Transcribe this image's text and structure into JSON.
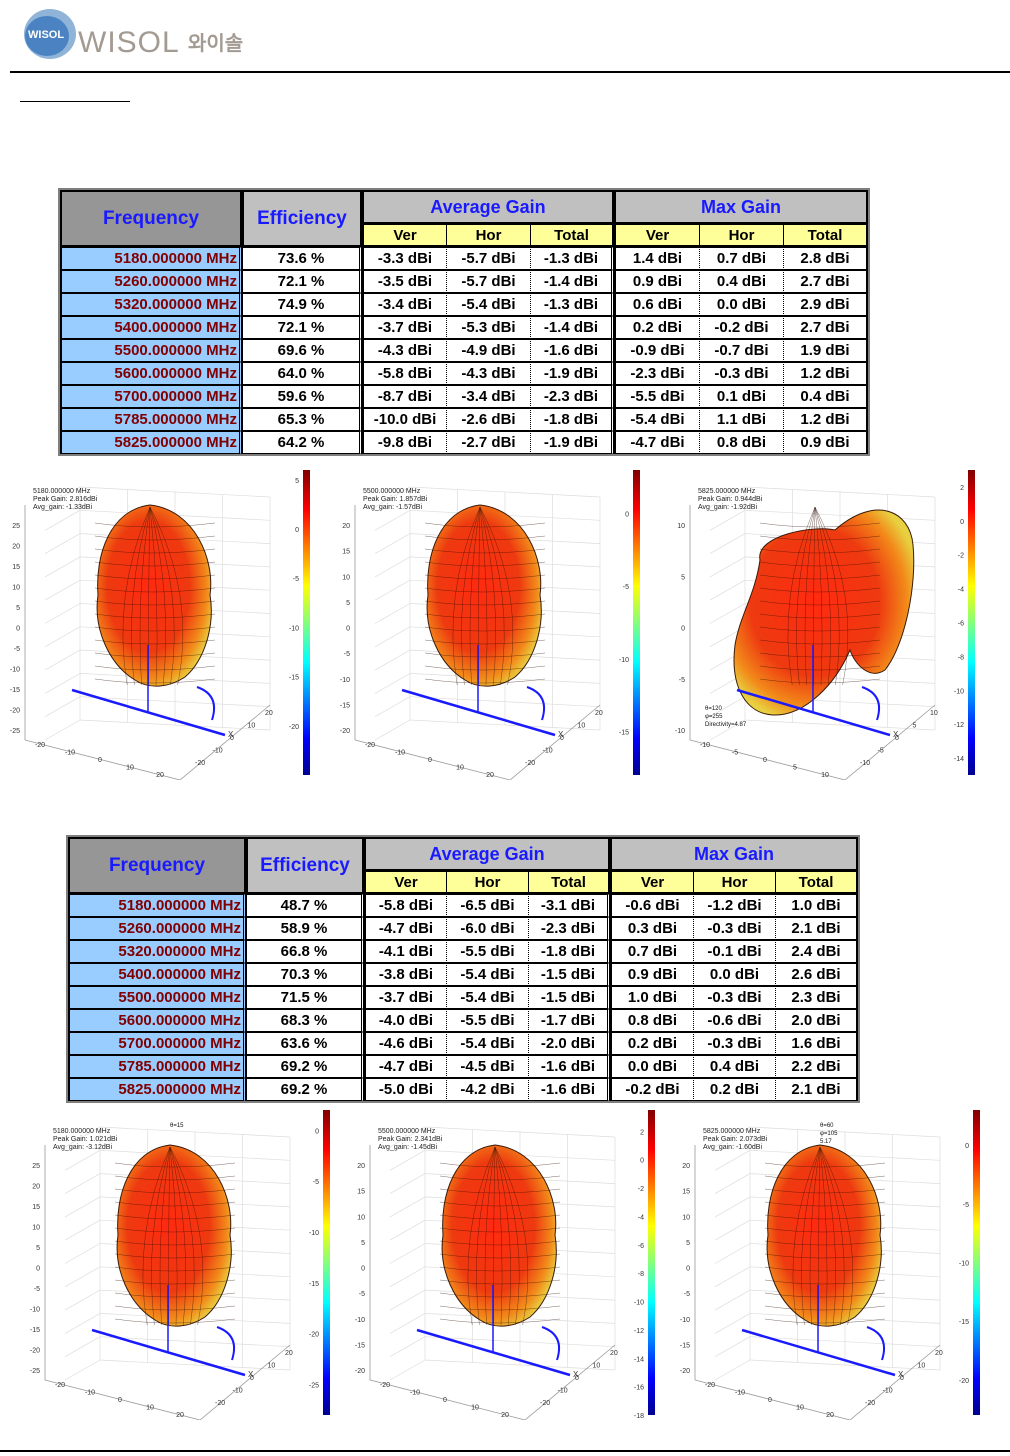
{
  "header": {
    "logo_badge_text": "WISOL",
    "logo_text": "WISOL",
    "logo_korean": "와이솔"
  },
  "colors": {
    "header_text": "#1a1aff",
    "freq_text": "#800000",
    "freq_bg": "#99ccff",
    "subheader_bg": "#ffff99",
    "header_bg_dark": "#969696",
    "header_bg_light": "#c0c0c0"
  },
  "tables": [
    {
      "headers": {
        "frequency": "Frequency",
        "efficiency": "Efficiency",
        "average_gain": "Average Gain",
        "max_gain": "Max Gain",
        "sub": [
          "Ver",
          "Hor",
          "Total",
          "Ver",
          "Hor",
          "Total"
        ]
      },
      "rows": [
        {
          "freq": "5180.000000 MHz",
          "eff": "73.6 %",
          "avg_ver": "-3.3 dBi",
          "avg_hor": "-5.7 dBi",
          "avg_total": "-1.3 dBi",
          "max_ver": "1.4 dBi",
          "max_hor": "0.7 dBi",
          "max_total": "2.8 dBi"
        },
        {
          "freq": "5260.000000 MHz",
          "eff": "72.1 %",
          "avg_ver": "-3.5 dBi",
          "avg_hor": "-5.7 dBi",
          "avg_total": "-1.4 dBi",
          "max_ver": "0.9 dBi",
          "max_hor": "0.4 dBi",
          "max_total": "2.7 dBi"
        },
        {
          "freq": "5320.000000 MHz",
          "eff": "74.9 %",
          "avg_ver": "-3.4 dBi",
          "avg_hor": "-5.4 dBi",
          "avg_total": "-1.3 dBi",
          "max_ver": "0.6 dBi",
          "max_hor": "0.0 dBi",
          "max_total": "2.9 dBi"
        },
        {
          "freq": "5400.000000 MHz",
          "eff": "72.1 %",
          "avg_ver": "-3.7 dBi",
          "avg_hor": "-5.3 dBi",
          "avg_total": "-1.4 dBi",
          "max_ver": "0.2 dBi",
          "max_hor": "-0.2 dBi",
          "max_total": "2.7 dBi"
        },
        {
          "freq": "5500.000000 MHz",
          "eff": "69.6 %",
          "avg_ver": "-4.3 dBi",
          "avg_hor": "-4.9 dBi",
          "avg_total": "-1.6 dBi",
          "max_ver": "-0.9 dBi",
          "max_hor": "-0.7 dBi",
          "max_total": "1.9 dBi"
        },
        {
          "freq": "5600.000000 MHz",
          "eff": "64.0 %",
          "avg_ver": "-5.8 dBi",
          "avg_hor": "-4.3 dBi",
          "avg_total": "-1.9 dBi",
          "max_ver": "-2.3 dBi",
          "max_hor": "-0.3 dBi",
          "max_total": "1.2 dBi"
        },
        {
          "freq": "5700.000000 MHz",
          "eff": "59.6 %",
          "avg_ver": "-8.7 dBi",
          "avg_hor": "-3.4 dBi",
          "avg_total": "-2.3 dBi",
          "max_ver": "-5.5 dBi",
          "max_hor": "0.1 dBi",
          "max_total": "0.4 dBi"
        },
        {
          "freq": "5785.000000 MHz",
          "eff": "65.3 %",
          "avg_ver": "-10.0 dBi",
          "avg_hor": "-2.6 dBi",
          "avg_total": "-1.8 dBi",
          "max_ver": "-5.4 dBi",
          "max_hor": "1.1 dBi",
          "max_total": "1.2 dBi"
        },
        {
          "freq": "5825.000000 MHz",
          "eff": "64.2 %",
          "avg_ver": "-9.8 dBi",
          "avg_hor": "-2.7 dBi",
          "avg_total": "-1.9 dBi",
          "max_ver": "-4.7 dBi",
          "max_hor": "0.8 dBi",
          "max_total": "0.9 dBi"
        }
      ]
    },
    {
      "headers": {
        "frequency": "Frequency",
        "efficiency": "Efficiency",
        "average_gain": "Average Gain",
        "max_gain": "Max Gain",
        "sub": [
          "Ver",
          "Hor",
          "Total",
          "Ver",
          "Hor",
          "Total"
        ]
      },
      "rows": [
        {
          "freq": "5180.000000 MHz",
          "eff": "48.7 %",
          "avg_ver": "-5.8 dBi",
          "avg_hor": "-6.5 dBi",
          "avg_total": "-3.1 dBi",
          "max_ver": "-0.6 dBi",
          "max_hor": "-1.2 dBi",
          "max_total": "1.0 dBi"
        },
        {
          "freq": "5260.000000 MHz",
          "eff": "58.9 %",
          "avg_ver": "-4.7 dBi",
          "avg_hor": "-6.0 dBi",
          "avg_total": "-2.3 dBi",
          "max_ver": "0.3 dBi",
          "max_hor": "-0.3 dBi",
          "max_total": "2.1 dBi"
        },
        {
          "freq": "5320.000000 MHz",
          "eff": "66.8 %",
          "avg_ver": "-4.1 dBi",
          "avg_hor": "-5.5 dBi",
          "avg_total": "-1.8 dBi",
          "max_ver": "0.7 dBi",
          "max_hor": "-0.1 dBi",
          "max_total": "2.4 dBi"
        },
        {
          "freq": "5400.000000 MHz",
          "eff": "70.3 %",
          "avg_ver": "-3.8 dBi",
          "avg_hor": "-5.4 dBi",
          "avg_total": "-1.5 dBi",
          "max_ver": "0.9 dBi",
          "max_hor": "0.0 dBi",
          "max_total": "2.6 dBi"
        },
        {
          "freq": "5500.000000 MHz",
          "eff": "71.5 %",
          "avg_ver": "-3.7 dBi",
          "avg_hor": "-5.4 dBi",
          "avg_total": "-1.5 dBi",
          "max_ver": "1.0 dBi",
          "max_hor": "-0.3 dBi",
          "max_total": "2.3 dBi"
        },
        {
          "freq": "5600.000000 MHz",
          "eff": "68.3 %",
          "avg_ver": "-4.0 dBi",
          "avg_hor": "-5.5 dBi",
          "avg_total": "-1.7 dBi",
          "max_ver": "0.8 dBi",
          "max_hor": "-0.6 dBi",
          "max_total": "2.0 dBi"
        },
        {
          "freq": "5700.000000 MHz",
          "eff": "63.6 %",
          "avg_ver": "-4.6 dBi",
          "avg_hor": "-5.4 dBi",
          "avg_total": "-2.0 dBi",
          "max_ver": "0.2 dBi",
          "max_hor": "-0.3 dBi",
          "max_total": "1.6 dBi"
        },
        {
          "freq": "5785.000000 MHz",
          "eff": "69.2 %",
          "avg_ver": "-4.7 dBi",
          "avg_hor": "-4.5 dBi",
          "avg_total": "-1.6 dBi",
          "max_ver": "0.0 dBi",
          "max_hor": "0.4 dBi",
          "max_total": "2.2 dBi"
        },
        {
          "freq": "5825.000000 MHz",
          "eff": "69.2 %",
          "avg_ver": "-5.0 dBi",
          "avg_hor": "-4.2 dBi",
          "avg_total": "-1.6 dBi",
          "max_ver": "-0.2 dBi",
          "max_hor": "0.2 dBi",
          "max_total": "2.1 dBi"
        }
      ]
    }
  ],
  "plots": [
    {
      "label": [
        "5180.000000 MHz",
        "Peak Gain: 2.816dBi",
        "Avg_gain: -1.33dBi"
      ],
      "z_ticks": [
        "25",
        "20",
        "15",
        "10",
        "5",
        "0",
        "-5",
        "-10",
        "-15",
        "-20",
        "-25"
      ],
      "x_ticks": [
        "-20",
        "-10",
        "0",
        "10",
        "20"
      ],
      "y_ticks": [
        "20",
        "10",
        "0",
        "-10",
        "-20"
      ],
      "axis_label": "X",
      "colorbar_ticks": [
        "5",
        "0",
        "-5",
        "-10",
        "-15",
        "-20"
      ],
      "colorbar_range": [
        -25,
        6
      ],
      "shape": "egg"
    },
    {
      "label": [
        "5500.000000 MHz",
        "Peak Gain: 1.857dBi",
        "Avg_gain: -1.57dBi"
      ],
      "z_ticks": [
        "20",
        "15",
        "10",
        "5",
        "0",
        "-5",
        "-10",
        "-15",
        "-20"
      ],
      "x_ticks": [
        "-20",
        "-10",
        "0",
        "10",
        "20"
      ],
      "y_ticks": [
        "20",
        "10",
        "0",
        "-10",
        "-20"
      ],
      "axis_label": "X",
      "colorbar_ticks": [
        "0",
        "-5",
        "-10",
        "-15"
      ],
      "colorbar_range": [
        -18,
        3
      ],
      "shape": "egg"
    },
    {
      "label": [
        "5825.000000 MHz",
        "Peak Gain: 0.944dBi",
        "Avg_gain: -1.92dBi"
      ],
      "annotation": [
        "θ=120",
        "φ=255",
        "Directivity=4.87"
      ],
      "z_ticks": [
        "10",
        "5",
        "0",
        "-5",
        "-10"
      ],
      "x_ticks": [
        "-10",
        "-5",
        "0",
        "5",
        "10"
      ],
      "y_ticks": [
        "10",
        "5",
        "0",
        "-5",
        "-10"
      ],
      "axis_label": "X",
      "colorbar_ticks": [
        "2",
        "0",
        "-2",
        "-4",
        "-6",
        "-8",
        "-10",
        "-12",
        "-14"
      ],
      "colorbar_range": [
        -15,
        3
      ],
      "shape": "heart"
    },
    {
      "label": [
        "5180.000000 MHz",
        "Peak Gain: 1.021dBi",
        "Avg_gain: -3.12dBi"
      ],
      "annotation": [
        "θ=15"
      ],
      "z_ticks": [
        "25",
        "20",
        "15",
        "10",
        "5",
        "0",
        "-5",
        "-10",
        "-15",
        "-20",
        "-25"
      ],
      "x_ticks": [
        "-20",
        "-10",
        "0",
        "10",
        "20"
      ],
      "y_ticks": [
        "20",
        "10",
        "0",
        "-10",
        "-20"
      ],
      "axis_label": "X",
      "colorbar_ticks": [
        "0",
        "-5",
        "-10",
        "-15",
        "-20",
        "-25"
      ],
      "colorbar_range": [
        -28,
        2
      ],
      "shape": "egg"
    },
    {
      "label": [
        "5500.000000 MHz",
        "Peak Gain: 2.341dBi",
        "Avg_gain: -1.45dBi"
      ],
      "z_ticks": [
        "20",
        "15",
        "10",
        "5",
        "0",
        "-5",
        "-10",
        "-15",
        "-20"
      ],
      "x_ticks": [
        "-20",
        "-10",
        "0",
        "10",
        "20"
      ],
      "y_ticks": [
        "20",
        "10",
        "0",
        "-10",
        "-20"
      ],
      "axis_label": "X",
      "colorbar_ticks": [
        "2",
        "0",
        "-2",
        "-4",
        "-6",
        "-8",
        "-10",
        "-12",
        "-14",
        "-16",
        "-18"
      ],
      "colorbar_range": [
        -18,
        3.5
      ],
      "shape": "egg"
    },
    {
      "label": [
        "5825.000000 MHz",
        "Peak Gain: 2.073dBi",
        "Avg_gain: -1.60dBi"
      ],
      "annotation": [
        "θ=60",
        "φ=105",
        "5.17"
      ],
      "z_ticks": [
        "20",
        "15",
        "10",
        "5",
        "0",
        "-5",
        "-10",
        "-15",
        "-20"
      ],
      "x_ticks": [
        "-20",
        "-10",
        "0",
        "10",
        "20"
      ],
      "y_ticks": [
        "20",
        "10",
        "0",
        "-10",
        "-20"
      ],
      "axis_label": "X",
      "colorbar_ticks": [
        "0",
        "-5",
        "-10",
        "-15",
        "-20"
      ],
      "colorbar_range": [
        -23,
        3
      ],
      "shape": "egg"
    }
  ]
}
